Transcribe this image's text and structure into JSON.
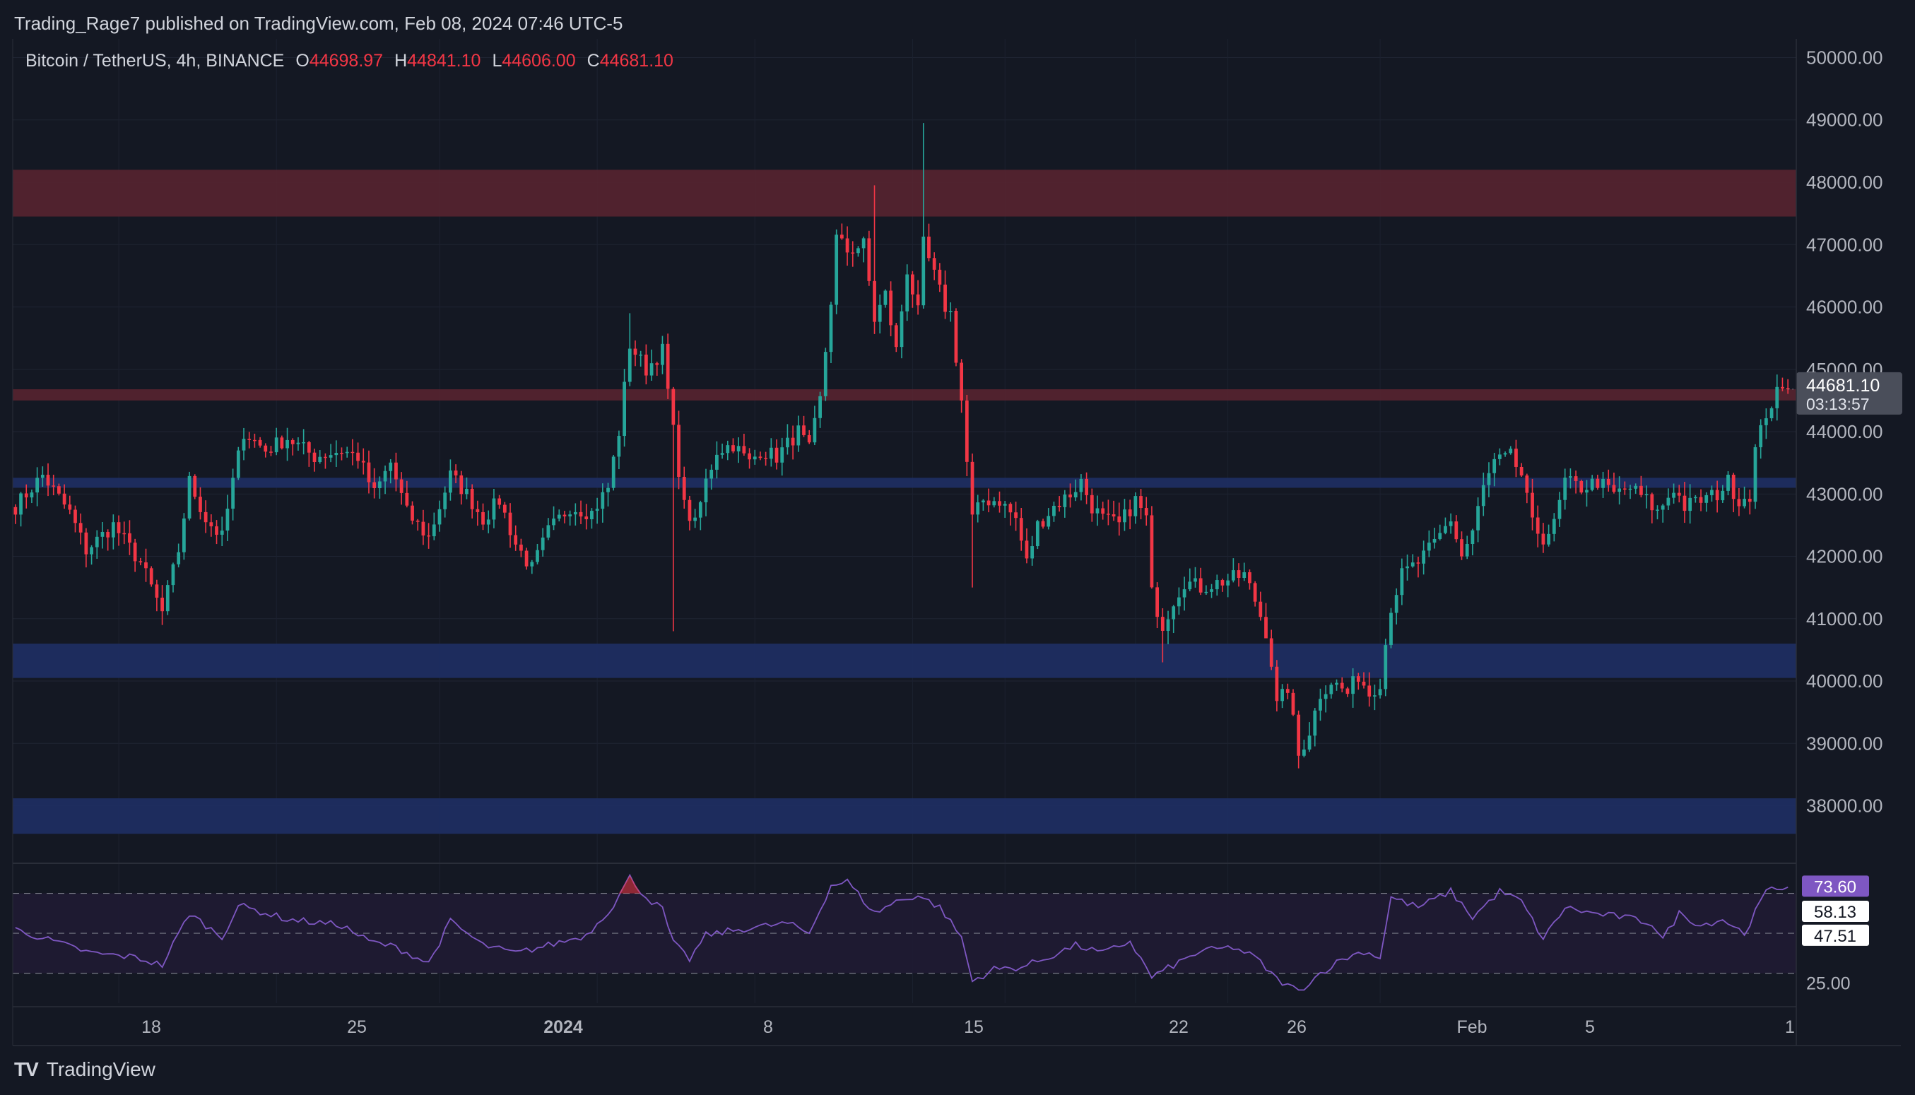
{
  "header": {
    "published_by": "Trading_Rage7 published on TradingView.com, Feb 08, 2024 07:46 UTC-5"
  },
  "legend": {
    "symbol": "Bitcoin / TetherUS, 4h, BINANCE",
    "open_label": "O",
    "open": "44698.97",
    "high_label": "H",
    "high": "44841.10",
    "low_label": "L",
    "low": "44606.00",
    "close_label": "C",
    "close": "44681.10"
  },
  "price_tag": {
    "price": "44681.10",
    "countdown": "03:13:57"
  },
  "footer": {
    "logo_mark": "TV",
    "logo_text": "TradingView"
  },
  "colors": {
    "background": "#141823",
    "up": "#26a69a",
    "down": "#f23645",
    "supply_zone": "#5a2530",
    "demand_zone": "#1e2f64",
    "rsi_line": "#7e57c2",
    "rsi_band": "#1f1b33"
  },
  "chart_data": [
    {
      "type": "candlestick",
      "title": "Bitcoin / TetherUS, 4h, BINANCE",
      "y_axis_ticks": [
        "50000.00",
        "49000.00",
        "48000.00",
        "47000.00",
        "46000.00",
        "45000.00",
        "44000.00",
        "43000.00",
        "42000.00",
        "41000.00",
        "40000.00",
        "39000.00",
        "38000.00"
      ],
      "ylim": [
        37100,
        50300
      ],
      "x_axis_ticks": [
        "18",
        "25",
        "2024",
        "8",
        "15",
        "22",
        "26",
        "Feb",
        "5",
        "1"
      ],
      "last_price": 44681.1,
      "last_ohlc": {
        "open": 44698.97,
        "high": 44841.1,
        "low": 44606.0,
        "close": 44681.1
      },
      "zones": [
        {
          "kind": "resistance",
          "from": 47450,
          "to": 48200
        },
        {
          "kind": "resistance",
          "from": 44500,
          "to": 44680
        },
        {
          "kind": "support",
          "from": 43100,
          "to": 43260
        },
        {
          "kind": "support",
          "from": 40050,
          "to": 40600
        },
        {
          "kind": "support",
          "from": 37550,
          "to": 38120
        }
      ],
      "series_path": [
        {
          "t": 0,
          "price": 42800
        },
        {
          "t": 5,
          "price": 43300
        },
        {
          "t": 10,
          "price": 42700
        },
        {
          "t": 13,
          "price": 42100
        },
        {
          "t": 18,
          "price": 42500
        },
        {
          "t": 23,
          "price": 41900
        },
        {
          "t": 27,
          "price": 41100
        },
        {
          "t": 30,
          "price": 42100
        },
        {
          "t": 32,
          "price": 43200
        },
        {
          "t": 35,
          "price": 42600
        },
        {
          "t": 38,
          "price": 42300
        },
        {
          "t": 40,
          "price": 43200
        },
        {
          "t": 42,
          "price": 44000
        },
        {
          "t": 46,
          "price": 43700
        },
        {
          "t": 50,
          "price": 43900
        },
        {
          "t": 55,
          "price": 43600
        },
        {
          "t": 60,
          "price": 43700
        },
        {
          "t": 63,
          "price": 43600
        },
        {
          "t": 66,
          "price": 43000
        },
        {
          "t": 69,
          "price": 43500
        },
        {
          "t": 72,
          "price": 42700
        },
        {
          "t": 76,
          "price": 42300
        },
        {
          "t": 80,
          "price": 43300
        },
        {
          "t": 83,
          "price": 43000
        },
        {
          "t": 86,
          "price": 42600
        },
        {
          "t": 89,
          "price": 42900
        },
        {
          "t": 92,
          "price": 42200
        },
        {
          "t": 95,
          "price": 41800
        },
        {
          "t": 98,
          "price": 42400
        },
        {
          "t": 102,
          "price": 42800
        },
        {
          "t": 106,
          "price": 42700
        },
        {
          "t": 109,
          "price": 43100
        },
        {
          "t": 111,
          "price": 44000
        },
        {
          "t": 113,
          "price": 45400
        },
        {
          "t": 116,
          "price": 45000
        },
        {
          "t": 119,
          "price": 45300
        },
        {
          "t": 121,
          "price": 44000
        },
        {
          "t": 123,
          "price": 42800
        },
        {
          "t": 125,
          "price": 42500
        },
        {
          "t": 127,
          "price": 43200
        },
        {
          "t": 129,
          "price": 43700
        },
        {
          "t": 132,
          "price": 43800
        },
        {
          "t": 135,
          "price": 43500
        },
        {
          "t": 137,
          "price": 43700
        },
        {
          "t": 140,
          "price": 43600
        },
        {
          "t": 144,
          "price": 44000
        },
        {
          "t": 146,
          "price": 43700
        },
        {
          "t": 148,
          "price": 44500
        },
        {
          "t": 150,
          "price": 46100
        },
        {
          "t": 151,
          "price": 47100
        },
        {
          "t": 153,
          "price": 46900
        },
        {
          "t": 156,
          "price": 47000
        },
        {
          "t": 158,
          "price": 45800
        },
        {
          "t": 160,
          "price": 46200
        },
        {
          "t": 162,
          "price": 45300
        },
        {
          "t": 164,
          "price": 46600
        },
        {
          "t": 166,
          "price": 45900
        },
        {
          "t": 167,
          "price": 47000
        },
        {
          "t": 169,
          "price": 46500
        },
        {
          "t": 171,
          "price": 46000
        },
        {
          "t": 172,
          "price": 45900
        },
        {
          "t": 174,
          "price": 44500
        },
        {
          "t": 175,
          "price": 43500
        },
        {
          "t": 176,
          "price": 42600
        },
        {
          "t": 178,
          "price": 42900
        },
        {
          "t": 181,
          "price": 42900
        },
        {
          "t": 184,
          "price": 42600
        },
        {
          "t": 186,
          "price": 41900
        },
        {
          "t": 188,
          "price": 42500
        },
        {
          "t": 191,
          "price": 42800
        },
        {
          "t": 194,
          "price": 43000
        },
        {
          "t": 196,
          "price": 43200
        },
        {
          "t": 198,
          "price": 42800
        },
        {
          "t": 200,
          "price": 42600
        },
        {
          "t": 203,
          "price": 42500
        },
        {
          "t": 206,
          "price": 42900
        },
        {
          "t": 208,
          "price": 42600
        },
        {
          "t": 209,
          "price": 41400
        },
        {
          "t": 211,
          "price": 40900
        },
        {
          "t": 213,
          "price": 41300
        },
        {
          "t": 215,
          "price": 41600
        },
        {
          "t": 218,
          "price": 41500
        },
        {
          "t": 222,
          "price": 41600
        },
        {
          "t": 226,
          "price": 41700
        },
        {
          "t": 228,
          "price": 41300
        },
        {
          "t": 230,
          "price": 40800
        },
        {
          "t": 231,
          "price": 40300
        },
        {
          "t": 232,
          "price": 39600
        },
        {
          "t": 234,
          "price": 39900
        },
        {
          "t": 236,
          "price": 38800
        },
        {
          "t": 238,
          "price": 39200
        },
        {
          "t": 240,
          "price": 39800
        },
        {
          "t": 242,
          "price": 40000
        },
        {
          "t": 245,
          "price": 39800
        },
        {
          "t": 247,
          "price": 40100
        },
        {
          "t": 249,
          "price": 39800
        },
        {
          "t": 251,
          "price": 40000
        },
        {
          "t": 253,
          "price": 41200
        },
        {
          "t": 255,
          "price": 41700
        },
        {
          "t": 258,
          "price": 41900
        },
        {
          "t": 261,
          "price": 42200
        },
        {
          "t": 264,
          "price": 42600
        },
        {
          "t": 266,
          "price": 42000
        },
        {
          "t": 268,
          "price": 42400
        },
        {
          "t": 270,
          "price": 43100
        },
        {
          "t": 272,
          "price": 43500
        },
        {
          "t": 275,
          "price": 43600
        },
        {
          "t": 277,
          "price": 43300
        },
        {
          "t": 279,
          "price": 42500
        },
        {
          "t": 281,
          "price": 42300
        },
        {
          "t": 283,
          "price": 42500
        },
        {
          "t": 285,
          "price": 43200
        },
        {
          "t": 288,
          "price": 43100
        },
        {
          "t": 291,
          "price": 43200
        },
        {
          "t": 294,
          "price": 43000
        },
        {
          "t": 297,
          "price": 43100
        },
        {
          "t": 300,
          "price": 42900
        },
        {
          "t": 302,
          "price": 42700
        },
        {
          "t": 305,
          "price": 43100
        },
        {
          "t": 307,
          "price": 42800
        },
        {
          "t": 310,
          "price": 42900
        },
        {
          "t": 313,
          "price": 43000
        },
        {
          "t": 315,
          "price": 43200
        },
        {
          "t": 317,
          "price": 42900
        },
        {
          "t": 319,
          "price": 43000
        },
        {
          "t": 320,
          "price": 43700
        },
        {
          "t": 322,
          "price": 44300
        },
        {
          "t": 324,
          "price": 44600
        },
        {
          "t": 326,
          "price": 44681
        }
      ]
    },
    {
      "type": "line",
      "title": "RSI",
      "levels": [
        70,
        50,
        30
      ],
      "labels": [
        "73.60",
        "58.13",
        "47.51",
        "25.00"
      ],
      "ylim": [
        15,
        84
      ],
      "values": [
        {
          "t": 0,
          "v": 52
        },
        {
          "t": 8,
          "v": 45
        },
        {
          "t": 14,
          "v": 40
        },
        {
          "t": 22,
          "v": 38
        },
        {
          "t": 27,
          "v": 34
        },
        {
          "t": 32,
          "v": 60
        },
        {
          "t": 38,
          "v": 48
        },
        {
          "t": 41,
          "v": 64
        },
        {
          "t": 50,
          "v": 57
        },
        {
          "t": 60,
          "v": 54
        },
        {
          "t": 65,
          "v": 46
        },
        {
          "t": 70,
          "v": 43
        },
        {
          "t": 76,
          "v": 35
        },
        {
          "t": 80,
          "v": 56
        },
        {
          "t": 86,
          "v": 44
        },
        {
          "t": 92,
          "v": 40
        },
        {
          "t": 98,
          "v": 44
        },
        {
          "t": 105,
          "v": 49
        },
        {
          "t": 110,
          "v": 64
        },
        {
          "t": 113,
          "v": 78
        },
        {
          "t": 116,
          "v": 68
        },
        {
          "t": 119,
          "v": 62
        },
        {
          "t": 121,
          "v": 45
        },
        {
          "t": 124,
          "v": 37
        },
        {
          "t": 127,
          "v": 49
        },
        {
          "t": 131,
          "v": 51
        },
        {
          "t": 136,
          "v": 53
        },
        {
          "t": 142,
          "v": 55
        },
        {
          "t": 146,
          "v": 50
        },
        {
          "t": 150,
          "v": 74
        },
        {
          "t": 153,
          "v": 76
        },
        {
          "t": 158,
          "v": 60
        },
        {
          "t": 162,
          "v": 66
        },
        {
          "t": 166,
          "v": 69
        },
        {
          "t": 170,
          "v": 63
        },
        {
          "t": 174,
          "v": 48
        },
        {
          "t": 176,
          "v": 26
        },
        {
          "t": 180,
          "v": 32
        },
        {
          "t": 185,
          "v": 33
        },
        {
          "t": 190,
          "v": 38
        },
        {
          "t": 195,
          "v": 44
        },
        {
          "t": 200,
          "v": 40
        },
        {
          "t": 205,
          "v": 46
        },
        {
          "t": 209,
          "v": 28
        },
        {
          "t": 213,
          "v": 34
        },
        {
          "t": 218,
          "v": 41
        },
        {
          "t": 224,
          "v": 43
        },
        {
          "t": 228,
          "v": 38
        },
        {
          "t": 232,
          "v": 27
        },
        {
          "t": 236,
          "v": 21
        },
        {
          "t": 240,
          "v": 30
        },
        {
          "t": 244,
          "v": 37
        },
        {
          "t": 248,
          "v": 41
        },
        {
          "t": 251,
          "v": 38
        },
        {
          "t": 253,
          "v": 68
        },
        {
          "t": 258,
          "v": 63
        },
        {
          "t": 264,
          "v": 71
        },
        {
          "t": 268,
          "v": 58
        },
        {
          "t": 273,
          "v": 71
        },
        {
          "t": 277,
          "v": 66
        },
        {
          "t": 281,
          "v": 47
        },
        {
          "t": 285,
          "v": 63
        },
        {
          "t": 290,
          "v": 60
        },
        {
          "t": 296,
          "v": 58
        },
        {
          "t": 301,
          "v": 55
        },
        {
          "t": 303,
          "v": 47
        },
        {
          "t": 306,
          "v": 60
        },
        {
          "t": 310,
          "v": 54
        },
        {
          "t": 314,
          "v": 57
        },
        {
          "t": 318,
          "v": 50
        },
        {
          "t": 322,
          "v": 71
        },
        {
          "t": 326,
          "v": 73.6
        }
      ]
    }
  ]
}
